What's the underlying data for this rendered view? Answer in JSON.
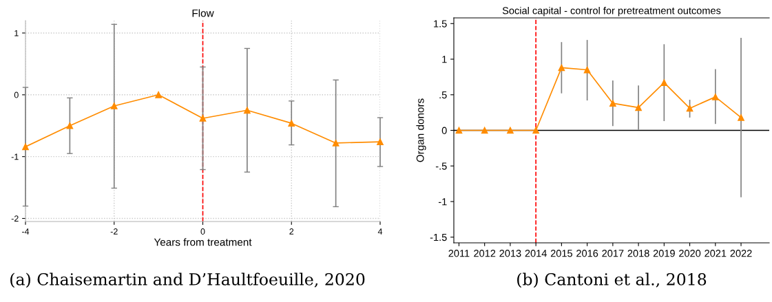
{
  "chart_data": [
    {
      "type": "line",
      "title": "Flow",
      "xlabel": "Years from treatment",
      "x": [
        -4,
        -3,
        -2,
        -1,
        0,
        1,
        2,
        3,
        4
      ],
      "series": [
        {
          "color": "#ff8c00",
          "values": [
            -0.84,
            -0.5,
            -0.18,
            0,
            -0.38,
            -0.25,
            -0.46,
            -0.78,
            -0.76
          ],
          "errors": [
            [
              -1.8,
              0.12
            ],
            [
              -0.95,
              -0.05
            ],
            [
              -1.51,
              1.14
            ],
            null,
            [
              -1.21,
              0.45
            ],
            [
              -1.25,
              0.75
            ],
            [
              -0.81,
              -0.1
            ],
            [
              -1.81,
              0.24
            ],
            [
              -1.16,
              -0.37
            ]
          ]
        }
      ],
      "xlim": [
        -4,
        4
      ],
      "xticks": [
        -4,
        -2,
        0,
        2,
        4
      ],
      "ylim": [
        -2.05,
        1.2
      ],
      "yticks": [
        -2,
        -1,
        0,
        1
      ],
      "grid": true,
      "marker": "triangle",
      "line_style": "solid",
      "ref_lines": [
        {
          "axis": "x",
          "value": 0,
          "color": "#ff0000",
          "line_style": "dashed"
        }
      ],
      "annotations": [
        "(a) Chaisemartin and D’Haultfoeuille, 2020"
      ]
    },
    {
      "type": "line",
      "title": "Social capital - control for pretreatment outcomes",
      "ylabel": "Organ donors",
      "x": [
        2011,
        2012,
        2013,
        2014,
        2015,
        2016,
        2017,
        2018,
        2019,
        2020,
        2021,
        2022
      ],
      "series": [
        {
          "color": "#ff8c00",
          "values": [
            0,
            0,
            0,
            0,
            0.88,
            0.85,
            0.38,
            0.32,
            0.67,
            0.31,
            0.47,
            0.18
          ],
          "errors": [
            null,
            null,
            null,
            null,
            [
              0.52,
              1.24
            ],
            [
              0.42,
              1.27
            ],
            [
              0.06,
              0.7
            ],
            [
              0.01,
              0.63
            ],
            [
              0.13,
              1.21
            ],
            [
              0.18,
              0.43
            ],
            [
              0.09,
              0.86
            ],
            [
              -0.94,
              1.3
            ]
          ]
        }
      ],
      "xlim": [
        2010.8,
        2023.1
      ],
      "xticks": [
        2011,
        2012,
        2013,
        2014,
        2015,
        2016,
        2017,
        2018,
        2019,
        2020,
        2021,
        2022
      ],
      "ylim": [
        -1.58,
        1.58
      ],
      "yticks": [
        {
          "value": -1.5,
          "label": "-1.5"
        },
        {
          "value": -1,
          "label": "-1"
        },
        {
          "value": -0.5,
          "label": "-.5"
        },
        0,
        {
          "value": 0.5,
          "label": ".5"
        },
        1,
        {
          "value": 1.5,
          "label": "1.5"
        }
      ],
      "grid": false,
      "marker": "triangle",
      "line_style": "solid",
      "ref_lines": [
        {
          "axis": "y",
          "value": 0,
          "color": "#000000",
          "line_style": "solid"
        },
        {
          "axis": "x",
          "value": 2014,
          "color": "#ff0000",
          "line_style": "dashed"
        }
      ],
      "annotations": [
        "(b) Cantoni et al., 2018"
      ]
    }
  ]
}
